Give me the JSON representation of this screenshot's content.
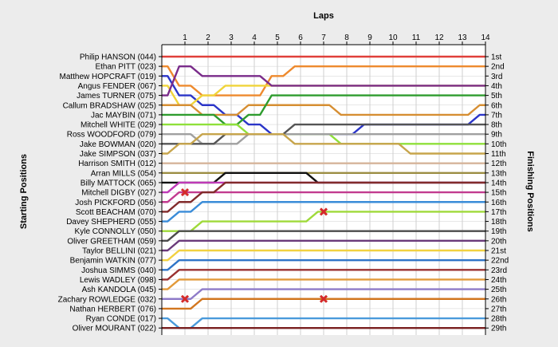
{
  "chart_data": {
    "type": "line",
    "title": "Laps",
    "ylabel_left": "Starting Positions",
    "ylabel_right": "Finishing Positions",
    "x_ticks": [
      1,
      2,
      3,
      4,
      5,
      6,
      7,
      8,
      9,
      10,
      11,
      12,
      13,
      14
    ],
    "xlim": [
      0,
      14
    ],
    "ylim": [
      1,
      29
    ],
    "grid": true,
    "starting_labels": [
      "Philip HANSON (044)",
      "Ethan PITT (023)",
      "Matthew HOPCRAFT (019)",
      "Angus FENDER (067)",
      "James TURNER (075)",
      "Callum BRADSHAW (025)",
      "Jac MAYBIN (071)",
      "Mitchell WHITE (029)",
      "Ross WOODFORD (079)",
      "Jake BOWMAN (020)",
      "Jake SIMPSON (037)",
      "Harrison SMITH (012)",
      "Arran MILLS (054)",
      "Billy MATTOCK (065)",
      "Mitchell DIGBY (027)",
      "Josh PICKFORD (056)",
      "Scott BEACHAM (070)",
      "Davey SHEPHERD (055)",
      "Kyle CONNOLLY (050)",
      "Oliver GREETHAM (059)",
      "Taylor BELLINI (021)",
      "Benjamin WATKIN (077)",
      "Joshua SIMMS (040)",
      "Lewis WADLEY (098)",
      "Ash KANDOLA (045)",
      "Zachary ROWLEDGE (032)",
      "Nathan HERBERT (076)",
      "Ryan CONDE (017)",
      "Oliver MOURANT (022)"
    ],
    "finishing_labels": [
      "1st",
      "2nd",
      "3rd",
      "4th",
      "5th",
      "6th",
      "7th",
      "8th",
      "9th",
      "10th",
      "11th",
      "12th",
      "13th",
      "14th",
      "15th",
      "16th",
      "17th",
      "18th",
      "19th",
      "20th",
      "21st",
      "22nd",
      "23rd",
      "24th",
      "25th",
      "26th",
      "27th",
      "28th",
      "29th"
    ],
    "series": [
      {
        "values": [
          1,
          1,
          1,
          1,
          1,
          1,
          1,
          1,
          1,
          1,
          1,
          1,
          1,
          1,
          1
        ],
        "color": "#e0403a"
      },
      {
        "values": [
          2,
          4,
          5,
          5,
          5,
          3,
          2,
          2,
          2,
          2,
          2,
          2,
          2,
          2,
          2
        ],
        "color": "#ee8a2e"
      },
      {
        "values": [
          3,
          5,
          6,
          7,
          8,
          9,
          9,
          9,
          9,
          8,
          8,
          8,
          8,
          8,
          7
        ],
        "color": "#2b35c8"
      },
      {
        "values": [
          4,
          6,
          5,
          4,
          4,
          4,
          4,
          4,
          4,
          4,
          4,
          4,
          4,
          4,
          4
        ],
        "color": "#f0d43a"
      },
      {
        "values": [
          5,
          2,
          3,
          3,
          3,
          4,
          4,
          4,
          4,
          4,
          4,
          4,
          4,
          4,
          4
        ],
        "color": "#7a2c8a"
      },
      {
        "values": [
          6,
          6,
          7,
          7,
          6,
          6,
          6,
          6,
          7,
          7,
          7,
          7,
          7,
          7,
          6
        ],
        "color": "#d68e32"
      },
      {
        "values": [
          7,
          7,
          7,
          8,
          7,
          5,
          5,
          5,
          5,
          5,
          5,
          5,
          5,
          5,
          5
        ],
        "color": "#2e9c2e"
      },
      {
        "values": [
          8,
          8,
          8,
          8,
          9,
          9,
          9,
          9,
          10,
          10,
          10,
          10,
          10,
          10,
          10
        ],
        "color": "#8fe03a"
      },
      {
        "values": [
          9,
          9,
          10,
          10,
          9,
          9,
          9,
          9,
          9,
          9,
          9,
          9,
          9,
          9,
          9
        ],
        "color": "#a0a0a0"
      },
      {
        "values": [
          10,
          10,
          10,
          9,
          9,
          9,
          8,
          8,
          8,
          8,
          8,
          8,
          8,
          8,
          8
        ],
        "color": "#555555"
      },
      {
        "values": [
          11,
          10,
          9,
          9,
          9,
          9,
          10,
          10,
          10,
          10,
          10,
          11,
          11,
          11,
          11
        ],
        "color": "#c7a54c"
      },
      {
        "values": [
          12,
          12,
          12,
          12,
          12,
          12,
          12,
          12,
          12,
          12,
          12,
          12,
          12,
          12,
          12
        ],
        "color": "#d6b49a"
      },
      {
        "values": [
          13,
          13,
          13,
          13,
          13,
          13,
          13,
          13,
          13,
          13,
          13,
          13,
          13,
          13,
          13
        ],
        "color": "#9c8e43"
      },
      {
        "values": [
          14,
          14,
          14,
          13,
          13,
          13,
          13,
          14,
          14,
          14,
          14,
          14,
          14,
          14,
          14
        ],
        "color": "#111111"
      },
      {
        "values": [
          15,
          14,
          14,
          14,
          14,
          14,
          14,
          14,
          14,
          14,
          14,
          14,
          14,
          14,
          14
        ],
        "color": "#bf3ab7"
      },
      {
        "values": [
          16,
          15,
          15,
          15,
          15,
          15,
          15,
          15,
          15,
          15,
          15,
          15,
          15,
          15,
          15
        ],
        "color": "#c23b8f"
      },
      {
        "values": [
          17,
          16,
          15,
          14,
          14,
          14,
          14,
          14,
          14,
          14,
          14,
          14,
          14,
          14,
          14
        ],
        "color": "#822b2b"
      },
      {
        "values": [
          18,
          17,
          16,
          16,
          16,
          16,
          16,
          16,
          16,
          16,
          16,
          16,
          16,
          16,
          16
        ],
        "color": "#3a8cd8"
      },
      {
        "values": [
          19,
          19,
          18,
          18,
          18,
          18,
          18,
          17,
          17,
          17,
          17,
          17,
          17,
          17,
          17
        ],
        "color": "#9fda3a"
      },
      {
        "values": [
          20,
          19,
          19,
          19,
          19,
          19,
          19,
          19,
          19,
          19,
          19,
          19,
          19,
          19,
          19
        ],
        "color": "#4c4c4c"
      },
      {
        "values": [
          21,
          20,
          20,
          20,
          20,
          20,
          20,
          20,
          20,
          20,
          20,
          20,
          20,
          20,
          20
        ],
        "color": "#6a3a7a"
      },
      {
        "values": [
          22,
          21,
          21,
          21,
          21,
          21,
          21,
          21,
          21,
          21,
          21,
          21,
          21,
          21,
          21
        ],
        "color": "#f2d140"
      },
      {
        "values": [
          23,
          22,
          22,
          22,
          22,
          22,
          22,
          22,
          22,
          22,
          22,
          22,
          22,
          22,
          22
        ],
        "color": "#2e74c8"
      },
      {
        "values": [
          24,
          23,
          23,
          23,
          23,
          23,
          23,
          23,
          23,
          23,
          23,
          23,
          23,
          23,
          23
        ],
        "color": "#9a3030"
      },
      {
        "values": [
          25,
          24,
          24,
          24,
          24,
          24,
          24,
          24,
          24,
          24,
          24,
          24,
          24,
          24,
          24
        ],
        "color": "#e29a3a"
      },
      {
        "values": [
          26,
          26,
          25,
          25,
          25,
          25,
          25,
          25,
          25,
          25,
          25,
          25,
          25,
          25,
          25
        ],
        "color": "#8e7bc8"
      },
      {
        "values": [
          27,
          27,
          26,
          26,
          26,
          26,
          26,
          26,
          26,
          26,
          26,
          26,
          26,
          26,
          26
        ],
        "color": "#d2761f"
      },
      {
        "values": [
          28,
          29,
          28,
          28,
          28,
          28,
          28,
          28,
          28,
          28,
          28,
          28,
          28,
          28,
          28
        ],
        "color": "#4a9adb"
      },
      {
        "values": [
          29,
          29,
          29,
          29,
          29,
          29,
          29,
          29,
          29,
          29,
          29,
          29,
          29,
          29,
          29
        ],
        "color": "#7a2020"
      }
    ],
    "markers": [
      {
        "lap": 1,
        "pos": 15
      },
      {
        "lap": 7,
        "pos": 17
      },
      {
        "lap": 1,
        "pos": 26
      },
      {
        "lap": 7,
        "pos": 26
      }
    ]
  },
  "colors": {
    "grid": "#cfcfcf",
    "axis": "#000000",
    "marker": "#d42a2a",
    "background": "#ececec",
    "plot_bg": "#ffffff"
  }
}
